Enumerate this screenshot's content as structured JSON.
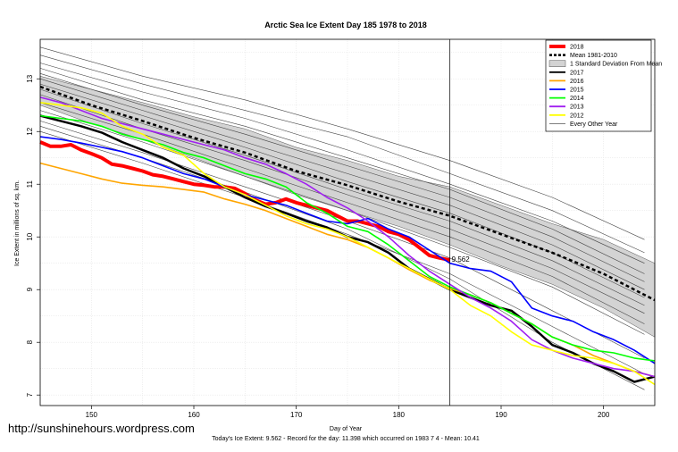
{
  "chart_data": {
    "type": "line",
    "title": "Arctic Sea Ice Extent Day 185 1978 to 2018",
    "xlabel": "Day of Year",
    "ylabel": "Ice Extent in millions of sq. km.",
    "xlim": [
      145,
      205
    ],
    "ylim": [
      6.8,
      13.75
    ],
    "xticks": [
      150,
      160,
      170,
      180,
      190,
      200
    ],
    "yticks": [
      7,
      8,
      9,
      10,
      11,
      12,
      13
    ],
    "grid": true,
    "legend_position": "top-right",
    "current_day": 185,
    "current_value_label": "9.562",
    "legend": [
      {
        "label": "2018",
        "color": "#ff0000",
        "style": "thick"
      },
      {
        "label": "Mean 1981-2010",
        "color": "#000000",
        "style": "dashed"
      },
      {
        "label": "1 Standard Deviation From Mean",
        "color": "#d3d3d3",
        "style": "band"
      },
      {
        "label": "2017",
        "color": "#000000",
        "style": "solid"
      },
      {
        "label": "2016",
        "color": "#ffa500",
        "style": "solid"
      },
      {
        "label": "2015",
        "color": "#0000ff",
        "style": "solid"
      },
      {
        "label": "2014",
        "color": "#00ff00",
        "style": "solid"
      },
      {
        "label": "2013",
        "color": "#a020f0",
        "style": "solid"
      },
      {
        "label": "2012",
        "color": "#ffff00",
        "style": "solid"
      },
      {
        "label": "Every Other Year",
        "color": "#555555",
        "style": "thin"
      }
    ],
    "mean": {
      "x": [
        145,
        150,
        155,
        160,
        165,
        170,
        175,
        180,
        185,
        190,
        195,
        200,
        205
      ],
      "y": [
        12.85,
        12.5,
        12.2,
        11.88,
        11.6,
        11.25,
        10.98,
        10.67,
        10.4,
        10.05,
        9.7,
        9.3,
        8.8
      ]
    },
    "std_band": {
      "x": [
        145,
        150,
        155,
        160,
        165,
        170,
        175,
        180,
        185,
        190,
        195,
        200,
        205
      ],
      "upper": [
        13.05,
        12.8,
        12.55,
        12.28,
        12.05,
        11.7,
        11.45,
        11.15,
        10.95,
        10.6,
        10.25,
        9.95,
        9.5
      ],
      "lower": [
        12.5,
        12.15,
        11.85,
        11.5,
        11.15,
        10.8,
        10.5,
        10.2,
        9.85,
        9.45,
        9.1,
        8.65,
        8.1
      ]
    },
    "series": [
      {
        "name": "2018",
        "color": "#ff0000",
        "width": 4,
        "x": [
          145,
          146,
          147,
          148,
          149,
          150,
          151,
          152,
          153,
          154,
          155,
          156,
          157,
          158,
          159,
          160,
          161,
          162,
          163,
          164,
          165,
          166,
          167,
          168,
          169,
          170,
          171,
          172,
          173,
          174,
          175,
          176,
          177,
          178,
          179,
          180,
          181,
          182,
          183,
          184,
          185
        ],
        "y": [
          11.8,
          11.72,
          11.72,
          11.75,
          11.65,
          11.58,
          11.5,
          11.38,
          11.35,
          11.3,
          11.25,
          11.18,
          11.15,
          11.1,
          11.05,
          11.0,
          10.98,
          10.95,
          10.95,
          10.92,
          10.82,
          10.7,
          10.62,
          10.65,
          10.72,
          10.65,
          10.6,
          10.55,
          10.5,
          10.4,
          10.3,
          10.3,
          10.25,
          10.2,
          10.1,
          10.05,
          9.95,
          9.8,
          9.65,
          9.6,
          9.56
        ]
      },
      {
        "name": "2017",
        "color": "#000000",
        "width": 2.5,
        "x": [
          145,
          147,
          149,
          151,
          153,
          155,
          157,
          159,
          161,
          163,
          165,
          167,
          169,
          171,
          173,
          175,
          177,
          179,
          181,
          183,
          185,
          187,
          189,
          191,
          193,
          195,
          197,
          199,
          201,
          203,
          205
        ],
        "y": [
          12.3,
          12.2,
          12.1,
          11.98,
          11.8,
          11.65,
          11.5,
          11.3,
          11.15,
          10.95,
          10.75,
          10.58,
          10.45,
          10.3,
          10.18,
          10.0,
          9.9,
          9.7,
          9.4,
          9.2,
          9.0,
          8.85,
          8.7,
          8.6,
          8.3,
          7.95,
          7.8,
          7.6,
          7.45,
          7.25,
          7.35
        ]
      },
      {
        "name": "2016",
        "color": "#ffa500",
        "width": 1.6,
        "x": [
          145,
          147,
          149,
          151,
          153,
          155,
          157,
          159,
          161,
          163,
          165,
          167,
          169,
          171,
          173,
          175,
          177,
          179,
          181,
          183,
          185,
          187,
          189,
          191,
          193,
          195,
          197,
          199,
          201,
          203,
          205
        ],
        "y": [
          11.4,
          11.3,
          11.2,
          11.1,
          11.02,
          10.98,
          10.95,
          10.9,
          10.85,
          10.72,
          10.62,
          10.5,
          10.35,
          10.2,
          10.05,
          9.95,
          9.8,
          9.6,
          9.38,
          9.18,
          9.02,
          8.9,
          8.75,
          8.55,
          8.35,
          8.1,
          7.95,
          7.75,
          7.6,
          7.45,
          7.35
        ]
      },
      {
        "name": "2015",
        "color": "#0000ff",
        "width": 1.6,
        "x": [
          145,
          147,
          149,
          151,
          153,
          155,
          157,
          159,
          161,
          163,
          165,
          167,
          169,
          171,
          173,
          175,
          177,
          179,
          181,
          183,
          185,
          187,
          189,
          191,
          193,
          195,
          197,
          199,
          201,
          203,
          205
        ],
        "y": [
          11.9,
          11.85,
          11.78,
          11.7,
          11.62,
          11.5,
          11.35,
          11.2,
          11.1,
          10.95,
          10.8,
          10.7,
          10.6,
          10.45,
          10.3,
          10.25,
          10.35,
          10.15,
          10.0,
          9.75,
          9.5,
          9.4,
          9.35,
          9.15,
          8.65,
          8.5,
          8.4,
          8.2,
          8.05,
          7.85,
          7.6
        ]
      },
      {
        "name": "2014",
        "color": "#00ff00",
        "width": 1.6,
        "x": [
          145,
          147,
          149,
          151,
          153,
          155,
          157,
          159,
          161,
          163,
          165,
          167,
          169,
          171,
          173,
          175,
          177,
          179,
          181,
          183,
          185,
          187,
          189,
          191,
          193,
          195,
          197,
          199,
          201,
          203,
          205
        ],
        "y": [
          12.3,
          12.25,
          12.2,
          12.1,
          11.95,
          11.85,
          11.75,
          11.6,
          11.5,
          11.35,
          11.2,
          11.1,
          10.95,
          10.65,
          10.45,
          10.2,
          10.1,
          9.85,
          9.55,
          9.25,
          9.05,
          8.9,
          8.75,
          8.55,
          8.35,
          8.1,
          7.95,
          7.85,
          7.8,
          7.7,
          7.65
        ]
      },
      {
        "name": "2013",
        "color": "#a020f0",
        "width": 1.6,
        "x": [
          145,
          147,
          149,
          151,
          153,
          155,
          157,
          159,
          161,
          163,
          165,
          167,
          169,
          171,
          173,
          175,
          177,
          179,
          181,
          183,
          185,
          187,
          189,
          191,
          193,
          195,
          197,
          199,
          201,
          203,
          205
        ],
        "y": [
          12.65,
          12.55,
          12.4,
          12.25,
          12.15,
          12.05,
          11.95,
          11.85,
          11.75,
          11.65,
          11.5,
          11.38,
          11.2,
          11.0,
          10.75,
          10.55,
          10.3,
          10.0,
          9.65,
          9.35,
          9.1,
          8.85,
          8.65,
          8.4,
          8.05,
          7.85,
          7.7,
          7.6,
          7.5,
          7.45,
          7.35
        ]
      },
      {
        "name": "2012",
        "color": "#ffff00",
        "width": 1.6,
        "x": [
          145,
          147,
          149,
          151,
          153,
          155,
          157,
          159,
          161,
          163,
          165,
          167,
          169,
          171,
          173,
          175,
          177,
          179,
          181,
          183,
          185,
          187,
          189,
          191,
          193,
          195,
          197,
          199,
          201,
          203,
          205
        ],
        "y": [
          12.55,
          12.5,
          12.45,
          12.35,
          12.1,
          11.95,
          11.7,
          11.55,
          11.2,
          10.95,
          10.8,
          10.6,
          10.4,
          10.25,
          10.15,
          10.0,
          9.8,
          9.6,
          9.4,
          9.2,
          9.0,
          8.7,
          8.5,
          8.2,
          7.95,
          7.85,
          7.75,
          7.7,
          7.6,
          7.45,
          7.2
        ]
      },
      {
        "name": "",
        "color": "#444444",
        "width": 0.6,
        "x": [
          145,
          155,
          165,
          175,
          185,
          195,
          204
        ],
        "y": [
          13.6,
          13.05,
          12.6,
          12.05,
          11.45,
          10.75,
          9.95
        ]
      },
      {
        "name": "",
        "color": "#444444",
        "width": 0.6,
        "x": [
          145,
          155,
          165,
          175,
          185,
          195,
          204
        ],
        "y": [
          13.45,
          12.9,
          12.4,
          11.9,
          11.2,
          10.5,
          9.7
        ]
      },
      {
        "name": "",
        "color": "#444444",
        "width": 0.6,
        "x": [
          145,
          155,
          165,
          175,
          185,
          195,
          204
        ],
        "y": [
          13.3,
          12.75,
          12.25,
          11.65,
          11.0,
          10.3,
          9.5
        ]
      },
      {
        "name": "",
        "color": "#444444",
        "width": 0.6,
        "x": [
          145,
          155,
          165,
          175,
          185,
          195,
          204
        ],
        "y": [
          13.2,
          12.6,
          12.1,
          11.5,
          10.9,
          10.15,
          9.3
        ]
      },
      {
        "name": "",
        "color": "#444444",
        "width": 0.6,
        "x": [
          145,
          155,
          165,
          175,
          185,
          195,
          204
        ],
        "y": [
          13.1,
          12.5,
          11.95,
          11.35,
          10.75,
          10.0,
          9.15
        ]
      },
      {
        "name": "",
        "color": "#444444",
        "width": 0.6,
        "x": [
          145,
          155,
          165,
          175,
          185,
          195,
          204
        ],
        "y": [
          13.0,
          12.4,
          11.8,
          11.2,
          10.6,
          9.85,
          9.0
        ]
      },
      {
        "name": "",
        "color": "#444444",
        "width": 0.6,
        "x": [
          145,
          155,
          165,
          175,
          185,
          195,
          204
        ],
        "y": [
          12.9,
          12.3,
          11.7,
          11.05,
          10.45,
          9.7,
          8.85
        ]
      },
      {
        "name": "",
        "color": "#444444",
        "width": 0.6,
        "x": [
          145,
          155,
          165,
          175,
          185,
          195,
          204
        ],
        "y": [
          12.8,
          12.15,
          11.55,
          10.9,
          10.3,
          9.55,
          8.7
        ]
      },
      {
        "name": "",
        "color": "#444444",
        "width": 0.6,
        "x": [
          145,
          155,
          165,
          175,
          185,
          195,
          204
        ],
        "y": [
          12.7,
          12.05,
          11.45,
          10.8,
          10.15,
          9.4,
          8.55
        ]
      },
      {
        "name": "",
        "color": "#444444",
        "width": 0.6,
        "x": [
          145,
          155,
          165,
          175,
          185,
          195,
          204
        ],
        "y": [
          12.55,
          11.95,
          11.3,
          10.65,
          10.0,
          9.25,
          8.35
        ]
      },
      {
        "name": "",
        "color": "#444444",
        "width": 0.6,
        "x": [
          145,
          155,
          165,
          175,
          185,
          195,
          204
        ],
        "y": [
          12.4,
          11.8,
          11.15,
          10.5,
          9.8,
          9.05,
          8.15
        ]
      },
      {
        "name": "",
        "color": "#444444",
        "width": 0.6,
        "x": [
          145,
          155,
          165,
          175,
          185,
          195,
          204
        ],
        "y": [
          12.2,
          11.6,
          10.95,
          10.3,
          9.6,
          8.6,
          7.7
        ]
      },
      {
        "name": "",
        "color": "#444444",
        "width": 0.6,
        "x": [
          145,
          155,
          165,
          175,
          185,
          195,
          204
        ],
        "y": [
          12.0,
          11.4,
          10.75,
          10.05,
          9.3,
          8.3,
          7.4
        ]
      },
      {
        "name": "",
        "color": "#444444",
        "width": 0.6,
        "x": [
          145,
          155,
          165,
          175,
          185,
          195,
          204
        ],
        "y": [
          12.1,
          11.5,
          10.85,
          10.15,
          9.2,
          8.0,
          7.1
        ]
      }
    ]
  },
  "footer": {
    "watermark": "http://sunshinehours.wordpress.com",
    "summary": "Today's Ice Extent: 9.562  -  Record for the day: 11.398 which occurred on 1983 7 4  -  Mean: 10.41"
  }
}
